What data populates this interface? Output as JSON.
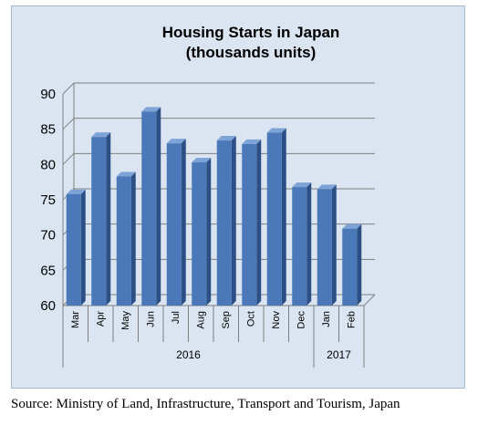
{
  "chart_data": {
    "type": "bar",
    "title": "Housing Starts in Japan",
    "subtitle": "(thousands units)",
    "categories": [
      "Mar",
      "Apr",
      "May",
      "Jun",
      "Jul",
      "Aug",
      "Sep",
      "Oct",
      "Nov",
      "Dec",
      "Jan",
      "Feb"
    ],
    "years": [
      {
        "label": "2016",
        "categories": [
          "Mar",
          "Apr",
          "May",
          "Jun",
          "Jul",
          "Aug",
          "Sep",
          "Oct",
          "Nov",
          "Dec"
        ]
      },
      {
        "label": "2017",
        "categories": [
          "Jan",
          "Feb"
        ]
      }
    ],
    "values": [
      75.8,
      83.9,
      78.3,
      87.5,
      83.0,
      80.3,
      83.4,
      82.9,
      84.5,
      76.8,
      76.5,
      70.9
    ],
    "yticks": [
      "60",
      "65",
      "70",
      "75",
      "80",
      "85",
      "90"
    ],
    "ylim": [
      60,
      90
    ],
    "grid": true,
    "legend": "none",
    "colors": {
      "bar_front": "#4a78b8",
      "bar_side": "#2c4f85",
      "bar_top": "#7ea3d6",
      "background": "#dbe5f1"
    }
  },
  "source": "Source: Ministry of Land, Infrastructure, Transport and Tourism, Japan"
}
